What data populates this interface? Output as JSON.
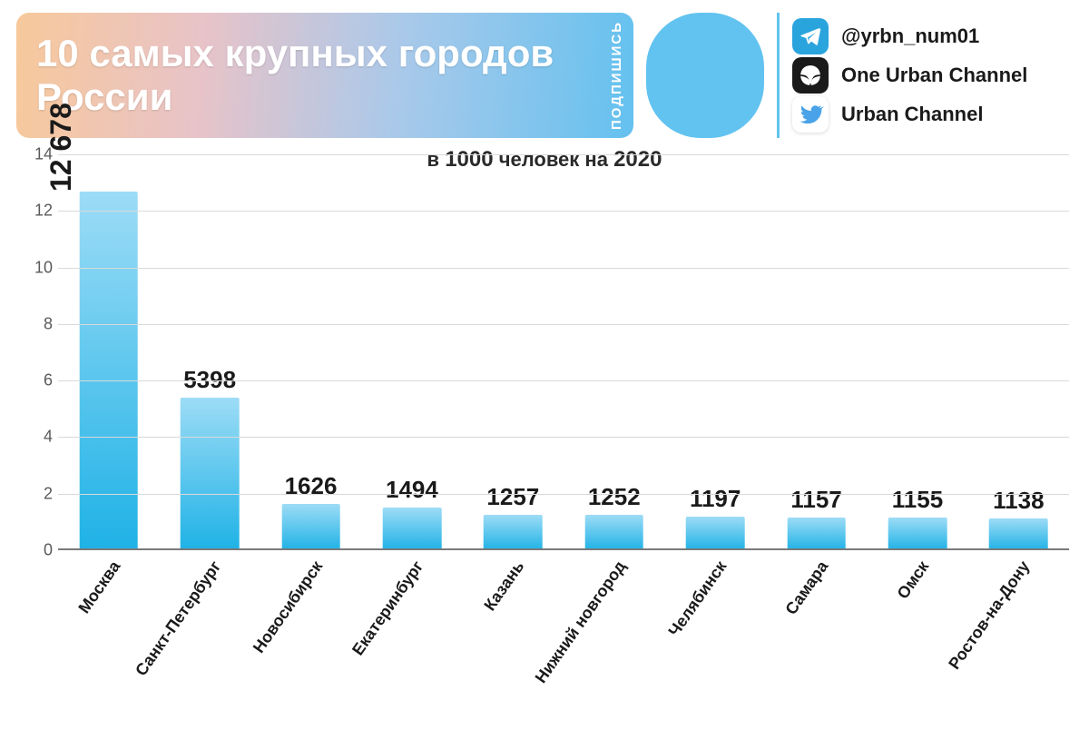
{
  "header": {
    "title": "10 самых крупных городов России",
    "title_color": "#ffffff",
    "title_fontsize": 42,
    "card_gradient_stops": [
      "#f7c99b",
      "#e8c3c8",
      "#a9c9ea",
      "#64c1ef"
    ],
    "badge_text": "ПОДПИШИСЬ",
    "pill_color": "#62c3f0",
    "vline_color": "#62c3f0",
    "socials": [
      {
        "name": "telegram",
        "label": "@yrbn_num01",
        "icon_bg": "#2aa4dd",
        "icon_fg": "#ffffff"
      },
      {
        "name": "zen",
        "label": "One Urban Channel",
        "icon_bg": "#1a1a1a",
        "icon_fg": "#ffffff"
      },
      {
        "name": "twitter",
        "label": "Urban Channel",
        "icon_bg": "#ffffff",
        "icon_fg": "#4aa3e8"
      }
    ]
  },
  "subtitle": {
    "prefix": "в ",
    "bold1": "1000",
    "mid": " человек на ",
    "bold2": "2020",
    "fontsize": 22,
    "color": "#2a2a2a"
  },
  "chart": {
    "type": "bar",
    "categories": [
      "Москва",
      "Санкт-Петербург",
      "Новосибирск",
      "Екатеринбург",
      "Казань",
      "Нижний новгород",
      "Челябинск",
      "Самара",
      "Омск",
      "Ростов-на-Дону"
    ],
    "value_labels": [
      "12 678",
      "5398",
      "1626",
      "1494",
      "1257",
      "1252",
      "1197",
      "1157",
      "1155",
      "1138"
    ],
    "values": [
      12.678,
      5.398,
      1.626,
      1.494,
      1.257,
      1.252,
      1.197,
      1.157,
      1.155,
      1.138
    ],
    "ylim": [
      0,
      14
    ],
    "yticks": [
      0,
      2,
      4,
      6,
      8,
      10,
      12,
      14
    ],
    "ytick_color": "#5a5a5a",
    "ytick_fontsize": 18,
    "grid_color": "#d9d9d9",
    "baseline_color": "#7a7a7a",
    "bar_gradient_top": "#9ddcf6",
    "bar_gradient_bottom": "#1fb2e6",
    "bar_width_ratio": 0.58,
    "value_label_fontsize": 26,
    "value_label_color": "#1a1a1a",
    "xlabel_fontsize": 18,
    "xlabel_rotation_deg": -55,
    "first_label_rotated_inside_bar": true,
    "background_color": "#ffffff"
  }
}
